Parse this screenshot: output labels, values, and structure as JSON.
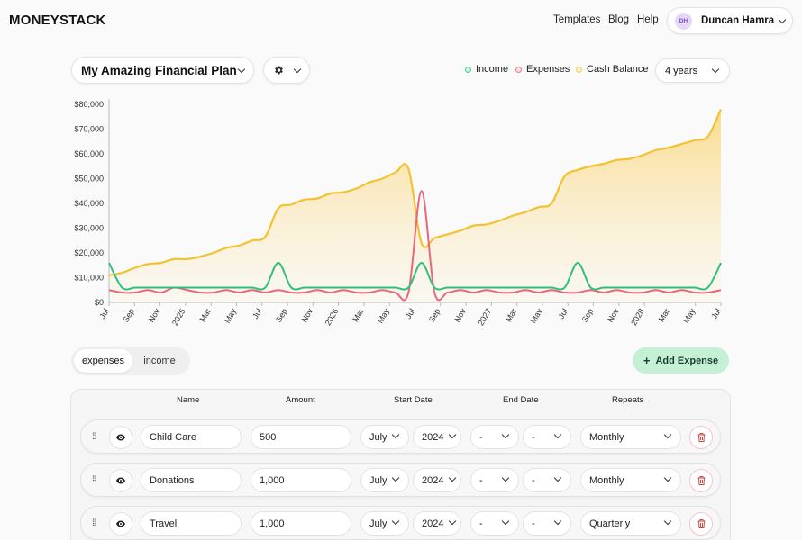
{
  "app": {
    "logo": "MONEYSTACK"
  },
  "nav": {
    "templates": "Templates",
    "blog": "Blog",
    "help": "Help"
  },
  "user": {
    "initials": "DH",
    "name": "Duncan Hamra"
  },
  "plan": {
    "title": "My Amazing Financial Plan"
  },
  "legend": [
    {
      "label": "Income",
      "color": "#3ecf8e"
    },
    {
      "label": "Expenses",
      "color": "#f07a8a"
    },
    {
      "label": "Cash Balance",
      "color": "#f7cf55"
    }
  ],
  "range": {
    "selected": "4 years"
  },
  "tabs": {
    "expenses": "expenses",
    "income": "income"
  },
  "add_button": {
    "icon": "plus-icon",
    "label": "Add Expense"
  },
  "columns": {
    "name": "Name",
    "amount": "Amount",
    "start": "Start Date",
    "end": "End Date",
    "repeats": "Repeats"
  },
  "rows": [
    {
      "name": "Child Care",
      "amount": "500",
      "start_month": "July",
      "start_year": "2024",
      "end_month": "-",
      "end_year": "-",
      "repeats": "Monthly"
    },
    {
      "name": "Donations",
      "amount": "1,000",
      "start_month": "July",
      "start_year": "2024",
      "end_month": "-",
      "end_year": "-",
      "repeats": "Monthly"
    },
    {
      "name": "Travel",
      "amount": "1,000",
      "start_month": "July",
      "start_year": "2024",
      "end_month": "-",
      "end_year": "-",
      "repeats": "Quarterly"
    }
  ],
  "chart_data": {
    "type": "area",
    "y_ticks": [
      "$0",
      "$10,000",
      "$20,000",
      "$30,000",
      "$40,000",
      "$50,000",
      "$60,000",
      "$70,000",
      "$80,000"
    ],
    "ylim": [
      0,
      80000
    ],
    "x_labels": [
      "Jul",
      "Sep",
      "Nov",
      "2025",
      "Mar",
      "May",
      "Jul",
      "Sep",
      "Nov",
      "2026",
      "Mar",
      "May",
      "Jul",
      "Sep",
      "Nov",
      "2027",
      "Mar",
      "May",
      "Jul",
      "Sep",
      "Nov",
      "2028",
      "Mar",
      "May",
      "Jul"
    ],
    "series": [
      {
        "name": "Cash Balance",
        "color": "#f2c230",
        "values": [
          11000,
          12000,
          14000,
          15500,
          16000,
          17500,
          17500,
          18500,
          20000,
          22000,
          23000,
          25000,
          26500,
          38000,
          39500,
          41500,
          42000,
          44000,
          44500,
          46000,
          48500,
          50000,
          52500,
          54000,
          24000,
          26000,
          27500,
          29000,
          31000,
          31500,
          33000,
          35000,
          36500,
          38500,
          40000,
          51000,
          53500,
          55000,
          56000,
          57500,
          58000,
          59500,
          61500,
          62500,
          64000,
          65500,
          67000,
          78000
        ],
        "x_units": "month index"
      },
      {
        "name": "Income",
        "color": "#2fbf7f",
        "values": [
          16000,
          6000,
          6000,
          6000,
          6000,
          6000,
          6000,
          6000,
          6000,
          6000,
          6000,
          6000,
          6000,
          16000,
          6000,
          6000,
          6000,
          6000,
          6000,
          6000,
          6000,
          6000,
          6000,
          6000,
          16000,
          6000,
          6000,
          6000,
          6000,
          6000,
          6000,
          6000,
          6000,
          6000,
          6000,
          6000,
          16000,
          6000,
          6000,
          6000,
          6000,
          6000,
          6000,
          6000,
          6000,
          6000,
          6000,
          16000
        ]
      },
      {
        "name": "Expenses",
        "color": "#e8687a",
        "values": [
          5000,
          4000,
          4000,
          5000,
          4000,
          6000,
          5000,
          4000,
          4000,
          5000,
          4000,
          5000,
          4000,
          5000,
          4000,
          4000,
          5000,
          4000,
          5000,
          4000,
          4000,
          5000,
          4000,
          4000,
          45000,
          4000,
          4000,
          5000,
          4000,
          5000,
          4000,
          4000,
          5000,
          4000,
          5000,
          4000,
          4000,
          5000,
          4000,
          5000,
          4000,
          4000,
          5000,
          4000,
          5000,
          4000,
          4000,
          5000
        ]
      }
    ]
  }
}
